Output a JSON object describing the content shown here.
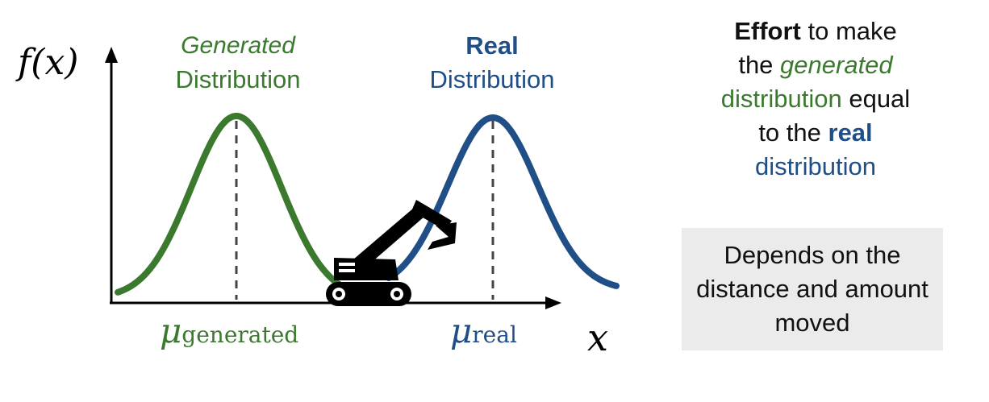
{
  "axes": {
    "y_label": "f(x)",
    "x_label": "x"
  },
  "generated": {
    "title_italic": "Generated",
    "title_line2": "Distribution",
    "mu_symbol": "μ",
    "mu_subscript": "generated",
    "color": "#3b7a2e"
  },
  "real": {
    "title_bold": "Real",
    "title_line2": "Distribution",
    "mu_symbol": "μ",
    "mu_subscript": "real",
    "color": "#1f4f86"
  },
  "excavator_icon": "excavator-icon",
  "effort": {
    "w1": "Effort",
    "w2": " to make",
    "w3": "the ",
    "w4": "generated",
    "w5": "distribution",
    "w6": " equal",
    "w7": "to the ",
    "w8": "real",
    "w9": "distribution"
  },
  "depends": {
    "text": "Depends on the distance and amount moved"
  }
}
